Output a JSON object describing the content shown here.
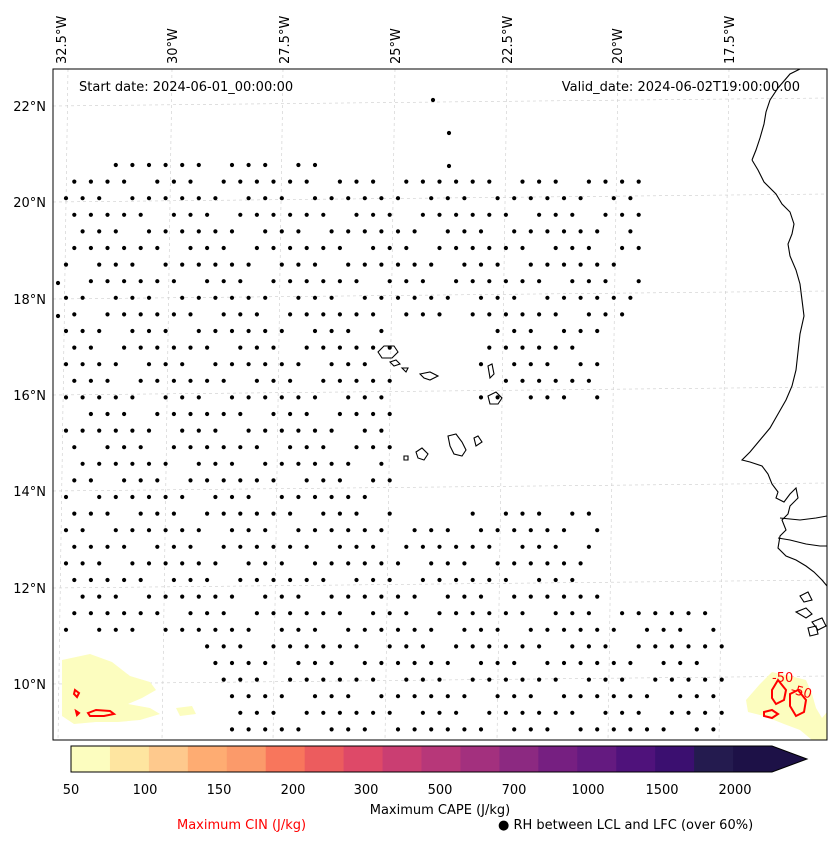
{
  "header": {
    "start_date": "Start date: 2024-06-01_00:00:00",
    "valid_date": "Valid_date: 2024-06-02T19:00:00.00"
  },
  "map": {
    "longitude_labels": [
      "32.5°W",
      "30°W",
      "27.5°W",
      "25°W",
      "22.5°W",
      "20°W",
      "17.5°W"
    ],
    "latitude_labels": [
      "22°N",
      "20°N",
      "18°N",
      "16°N",
      "14°N",
      "12°N",
      "10°N"
    ],
    "extent": {
      "lon_min": -33.0,
      "lon_max": -15.5,
      "lat_min": 9.0,
      "lat_max": 22.7
    },
    "grid": "dashed light gray",
    "coastline_color": "#000000",
    "dot_color": "#000000",
    "cin_contour_color": "#ff0000",
    "cin_contour_labels": [
      "-50",
      "-50"
    ]
  },
  "colorbar": {
    "tick_labels": [
      "50",
      "100",
      "150",
      "200",
      "300",
      "500",
      "700",
      "1000",
      "1500",
      "2000"
    ],
    "colors": [
      "#fcfdbf",
      "#fee5a0",
      "#fec98d",
      "#feac72",
      "#fb9a6a",
      "#f8765c",
      "#ec5c5e",
      "#de4968",
      "#ca3e72",
      "#b73779",
      "#a3307e",
      "#8c2981",
      "#761f81",
      "#641a80",
      "#4f127b",
      "#3b0f70",
      "#241b4f",
      "#1d1147"
    ],
    "label": "Maximum CAPE (J/kg)",
    "extend": "max"
  },
  "legend": {
    "cin_label": "Maximum CIN (J/kg)",
    "rh_marker": "●",
    "rh_label": "RH between LCL and LFC (over 60%)"
  }
}
